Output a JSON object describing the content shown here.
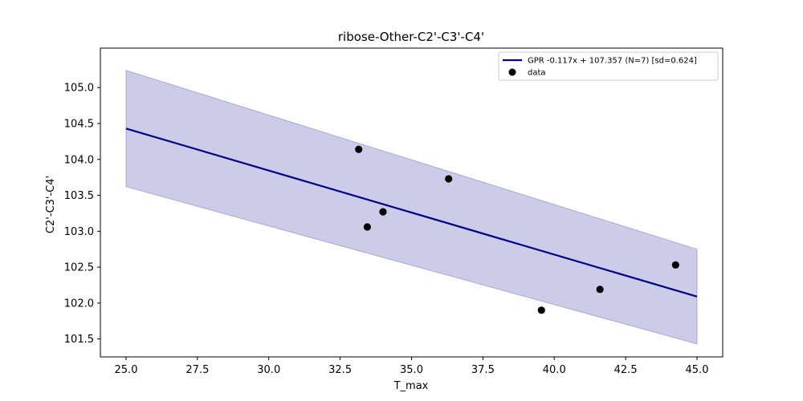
{
  "chart_data": {
    "type": "line",
    "title": "ribose-Other-C2'-C3'-C4'",
    "xlabel": "T_max",
    "ylabel": "C2'-C3'-C4'",
    "xlim": [
      24.1,
      45.9
    ],
    "ylim": [
      101.25,
      105.55
    ],
    "x_ticks": [
      25.0,
      27.5,
      30.0,
      32.5,
      35.0,
      37.5,
      40.0,
      42.5,
      45.0
    ],
    "x_tick_labels": [
      "25.0",
      "27.5",
      "30.0",
      "32.5",
      "35.0",
      "37.5",
      "40.0",
      "42.5",
      "45.0"
    ],
    "y_ticks": [
      101.5,
      102.0,
      102.5,
      103.0,
      103.5,
      104.0,
      104.5,
      105.0
    ],
    "y_tick_labels": [
      "101.5",
      "102.0",
      "102.5",
      "103.0",
      "103.5",
      "104.0",
      "104.5",
      "105.0"
    ],
    "grid": false,
    "legend_position": "top-right",
    "series": [
      {
        "name": "GPR -0.117x + 107.357 (N=7) [sd=0.624]",
        "kind": "line",
        "color": "#00008b",
        "x": [
          25.0,
          45.0
        ],
        "y": [
          104.43,
          102.09
        ]
      },
      {
        "name": "data",
        "kind": "scatter",
        "color": "#000000",
        "x": [
          33.15,
          33.45,
          34.0,
          36.3,
          39.55,
          41.6,
          44.25
        ],
        "y": [
          104.14,
          103.06,
          103.27,
          103.73,
          101.9,
          102.19,
          102.53
        ]
      }
    ],
    "band": {
      "color": "#00008b",
      "opacity": 0.2,
      "x": [
        25.0,
        45.0
      ],
      "upper": [
        105.24,
        102.75
      ],
      "lower": [
        103.62,
        101.43
      ]
    }
  }
}
